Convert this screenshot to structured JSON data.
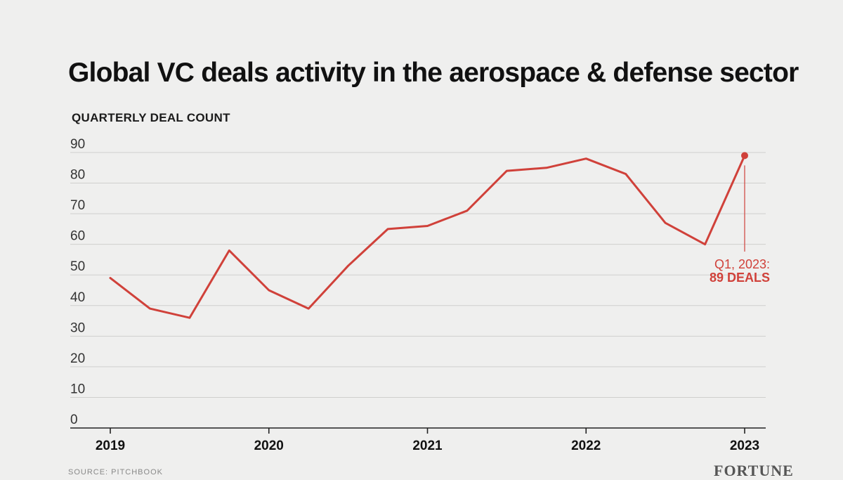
{
  "chart_data": {
    "type": "line",
    "title": "Global VC deals activity in the aerospace & defense sector",
    "ylabel": "QUARTERLY DEAL COUNT",
    "xlabel": "",
    "ylim": [
      0,
      90
    ],
    "yticks": [
      0,
      10,
      20,
      30,
      40,
      50,
      60,
      70,
      80,
      90
    ],
    "xticks": [
      "2019",
      "2020",
      "2021",
      "2022",
      "2023"
    ],
    "grid": true,
    "line_color": "#d0413a",
    "x": [
      "Q1 2019",
      "Q2 2019",
      "Q3 2019",
      "Q4 2019",
      "Q1 2020",
      "Q2 2020",
      "Q3 2020",
      "Q4 2020",
      "Q1 2021",
      "Q2 2021",
      "Q3 2021",
      "Q4 2021",
      "Q1 2022",
      "Q2 2022",
      "Q3 2022",
      "Q4 2022",
      "Q1 2023"
    ],
    "values": [
      49,
      39,
      36,
      58,
      45,
      39,
      53,
      65,
      66,
      71,
      84,
      85,
      88,
      83,
      67,
      60,
      89
    ],
    "annotation": {
      "line1": "Q1, 2023:",
      "line2": "89 DEALS"
    },
    "source": "SOURCE: PITCHBOOK",
    "brand": "FORTUNE"
  }
}
